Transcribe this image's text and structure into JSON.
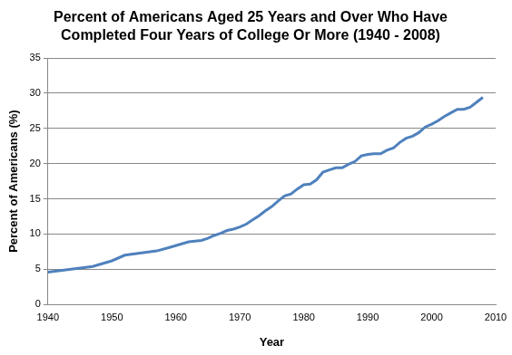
{
  "chart_data": {
    "type": "line",
    "title": [
      "Percent of Americans Aged 25 Years and Over Who Have",
      "Completed Four Years of College Or More (1940 - 2008)"
    ],
    "x_label": "Year",
    "y_label": "Percent of Americans (%)",
    "x": [
      1940,
      1947,
      1950,
      1952,
      1957,
      1959,
      1962,
      1964,
      1965,
      1966,
      1967,
      1968,
      1969,
      1970,
      1971,
      1972,
      1973,
      1974,
      1975,
      1976,
      1977,
      1978,
      1979,
      1980,
      1981,
      1982,
      1983,
      1984,
      1985,
      1986,
      1987,
      1988,
      1989,
      1990,
      1991,
      1992,
      1993,
      1994,
      1995,
      1996,
      1997,
      1998,
      1999,
      2000,
      2001,
      2002,
      2003,
      2004,
      2005,
      2006,
      2007,
      2008
    ],
    "values": [
      4.6,
      5.4,
      6.2,
      7.0,
      7.6,
      8.1,
      8.9,
      9.1,
      9.4,
      9.8,
      10.1,
      10.5,
      10.7,
      11.0,
      11.4,
      12.0,
      12.6,
      13.3,
      13.9,
      14.7,
      15.4,
      15.7,
      16.4,
      17.0,
      17.1,
      17.7,
      18.8,
      19.1,
      19.4,
      19.4,
      19.9,
      20.3,
      21.1,
      21.3,
      21.4,
      21.4,
      21.9,
      22.2,
      23.0,
      23.6,
      23.9,
      24.4,
      25.2,
      25.6,
      26.1,
      26.7,
      27.2,
      27.7,
      27.7,
      28.0,
      28.7,
      29.4
    ],
    "color": "#4f81bd",
    "xlim": [
      1940,
      2010
    ],
    "xticks": [
      1940,
      1950,
      1960,
      1970,
      1980,
      1990,
      2000,
      2010
    ],
    "ylim": [
      0,
      35
    ],
    "yticks": [
      0,
      5,
      10,
      15,
      20,
      25,
      30,
      35
    ],
    "grid": "y"
  }
}
